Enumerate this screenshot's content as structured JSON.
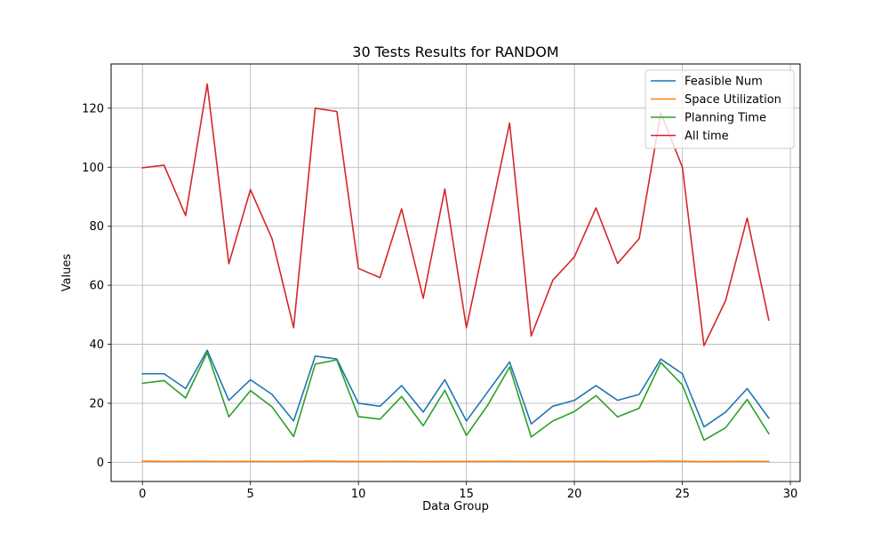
{
  "chart_data": {
    "type": "line",
    "title": "30 Tests Results for RANDOM",
    "xlabel": "Data Group",
    "ylabel": "Values",
    "xlim": [
      -1.45,
      30.45
    ],
    "ylim": [
      -6.5,
      135
    ],
    "xticks": [
      0,
      5,
      10,
      15,
      20,
      25,
      30
    ],
    "yticks": [
      0,
      20,
      40,
      60,
      80,
      100,
      120
    ],
    "grid": true,
    "legend": "top-right",
    "x": [
      0,
      1,
      2,
      3,
      4,
      5,
      6,
      7,
      8,
      9,
      10,
      11,
      12,
      13,
      14,
      15,
      16,
      17,
      18,
      19,
      20,
      21,
      22,
      23,
      24,
      25,
      26,
      27,
      28,
      29
    ],
    "series": [
      {
        "name": "Feasible Num",
        "color": "#1f77b4",
        "values": [
          30,
          30,
          25,
          38,
          21,
          28,
          23,
          14,
          36,
          35,
          20,
          19,
          26,
          17,
          28,
          14,
          24,
          34,
          13,
          19,
          21,
          26,
          21,
          23,
          35,
          30,
          12,
          17,
          25,
          15
        ]
      },
      {
        "name": "Space Utilization",
        "color": "#ff7f0e",
        "values": [
          0.4,
          0.3,
          0.35,
          0.35,
          0.3,
          0.35,
          0.3,
          0.3,
          0.4,
          0.35,
          0.3,
          0.3,
          0.35,
          0.25,
          0.3,
          0.3,
          0.35,
          0.35,
          0.3,
          0.3,
          0.3,
          0.35,
          0.3,
          0.3,
          0.4,
          0.35,
          0.25,
          0.3,
          0.35,
          0.3
        ]
      },
      {
        "name": "Planning Time",
        "color": "#2ca02c",
        "values": [
          26.8,
          27.7,
          21.8,
          37.2,
          15.4,
          24.3,
          18.8,
          8.7,
          33.3,
          34.7,
          15.5,
          14.6,
          22.3,
          12.4,
          24.4,
          9.1,
          19.5,
          32.3,
          8.6,
          14.0,
          17.2,
          22.6,
          15.4,
          18.3,
          33.8,
          26.2,
          7.5,
          11.7,
          21.3,
          9.7
        ]
      },
      {
        "name": "All time",
        "color": "#d62728",
        "values": [
          99.8,
          100.7,
          83.6,
          128.2,
          67.3,
          92.4,
          75.8,
          45.6,
          120.0,
          118.9,
          65.7,
          62.6,
          85.9,
          55.6,
          92.6,
          45.6,
          80.0,
          115.0,
          42.8,
          61.7,
          69.6,
          86.2,
          67.4,
          75.8,
          118.4,
          100.0,
          39.5,
          54.8,
          82.8,
          48.2
        ]
      }
    ]
  }
}
